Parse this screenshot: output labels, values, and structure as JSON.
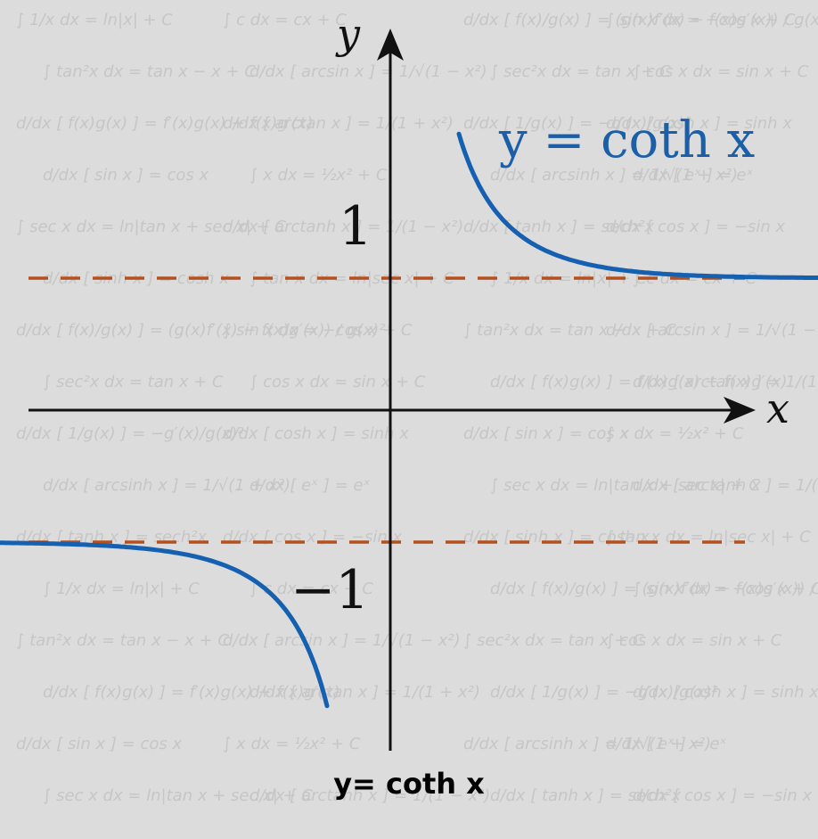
{
  "caption": "y= coth x",
  "chart_data": {
    "type": "line",
    "title": "y = coth x",
    "xlabel": "x",
    "ylabel": "y",
    "xlim": [
      -4.2,
      4.2
    ],
    "ylim": [
      -3.9,
      4.2
    ],
    "y_ticks": [
      {
        "value": 1,
        "label": "1"
      },
      {
        "value": -1,
        "label": "−1"
      }
    ],
    "asymptotes": [
      {
        "axis": "y",
        "value": 1
      },
      {
        "axis": "y",
        "value": -1
      }
    ],
    "series": [
      {
        "name": "y = coth x",
        "function": "coth",
        "branches": [
          {
            "x": [
              0.52,
              0.6,
              0.75,
              1.0,
              1.5,
              2.0,
              2.5,
              3.0,
              3.5,
              4.05
            ],
            "y": [
              2.09,
              1.86,
              1.57,
              1.31,
              1.1,
              1.04,
              1.01,
              1.0,
              1.0,
              1.0
            ]
          },
          {
            "x": [
              -4.05,
              -3.5,
              -3.0,
              -2.5,
              -2.0,
              -1.5,
              -1.0,
              -0.75,
              -0.6,
              -0.48
            ],
            "y": [
              -1.0,
              -1.0,
              -1.0,
              -1.01,
              -1.04,
              -1.1,
              -1.31,
              -1.57,
              -1.86,
              -2.24
            ]
          }
        ]
      }
    ],
    "colors": {
      "curve": "#1560b0",
      "asymptote": "#b4501e",
      "axis": "#111111",
      "title": "#1a5fa8",
      "background": "#dcdcdc",
      "watermark": "#c6c6c6"
    },
    "legend": "none",
    "grid": false
  },
  "background_formulas": [
    "∫ 1/x dx = ln|x| + C",
    "∫ c dx = cx + C",
    "d/dx [ f(x)/g(x) ] = (g(x)f′(x) − f(x)g′(x)) / g(x)²",
    "∫ sin x dx = −cos x + C",
    "∫ tan²x dx = tan x − x + C",
    "d/dx [ arcsin x ] = 1/√(1 − x²)",
    "∫ sec²x dx = tan x + C",
    "∫ cos x dx = sin x + C",
    "d/dx [ f(x)g(x) ] = f′(x)g(x) + f(x)g′(x)",
    "d/dx [ arctan x ] = 1/(1 + x²)",
    "d/dx [ 1/g(x) ] = −g′(x)/g(x)²",
    "d/dx [ cosh x ] = sinh x",
    "d/dx [ sin x ] = cos x",
    "∫ x dx = ½x² + C",
    "d/dx [ arcsinh x ] = 1/√(1 + x²)",
    "d/dx [ eˣ ] = eˣ",
    "∫ sec x dx = ln|tan x + sec x| + C",
    "d/dx [ arctanh x ] = 1/(1 − x²)",
    "d/dx [ tanh x ] = sech²x",
    "d/dx [ cos x ] = −sin x",
    "d/dx [ sinh x ] = cosh x",
    "∫ tan x dx = ln|sec x| + C"
  ]
}
